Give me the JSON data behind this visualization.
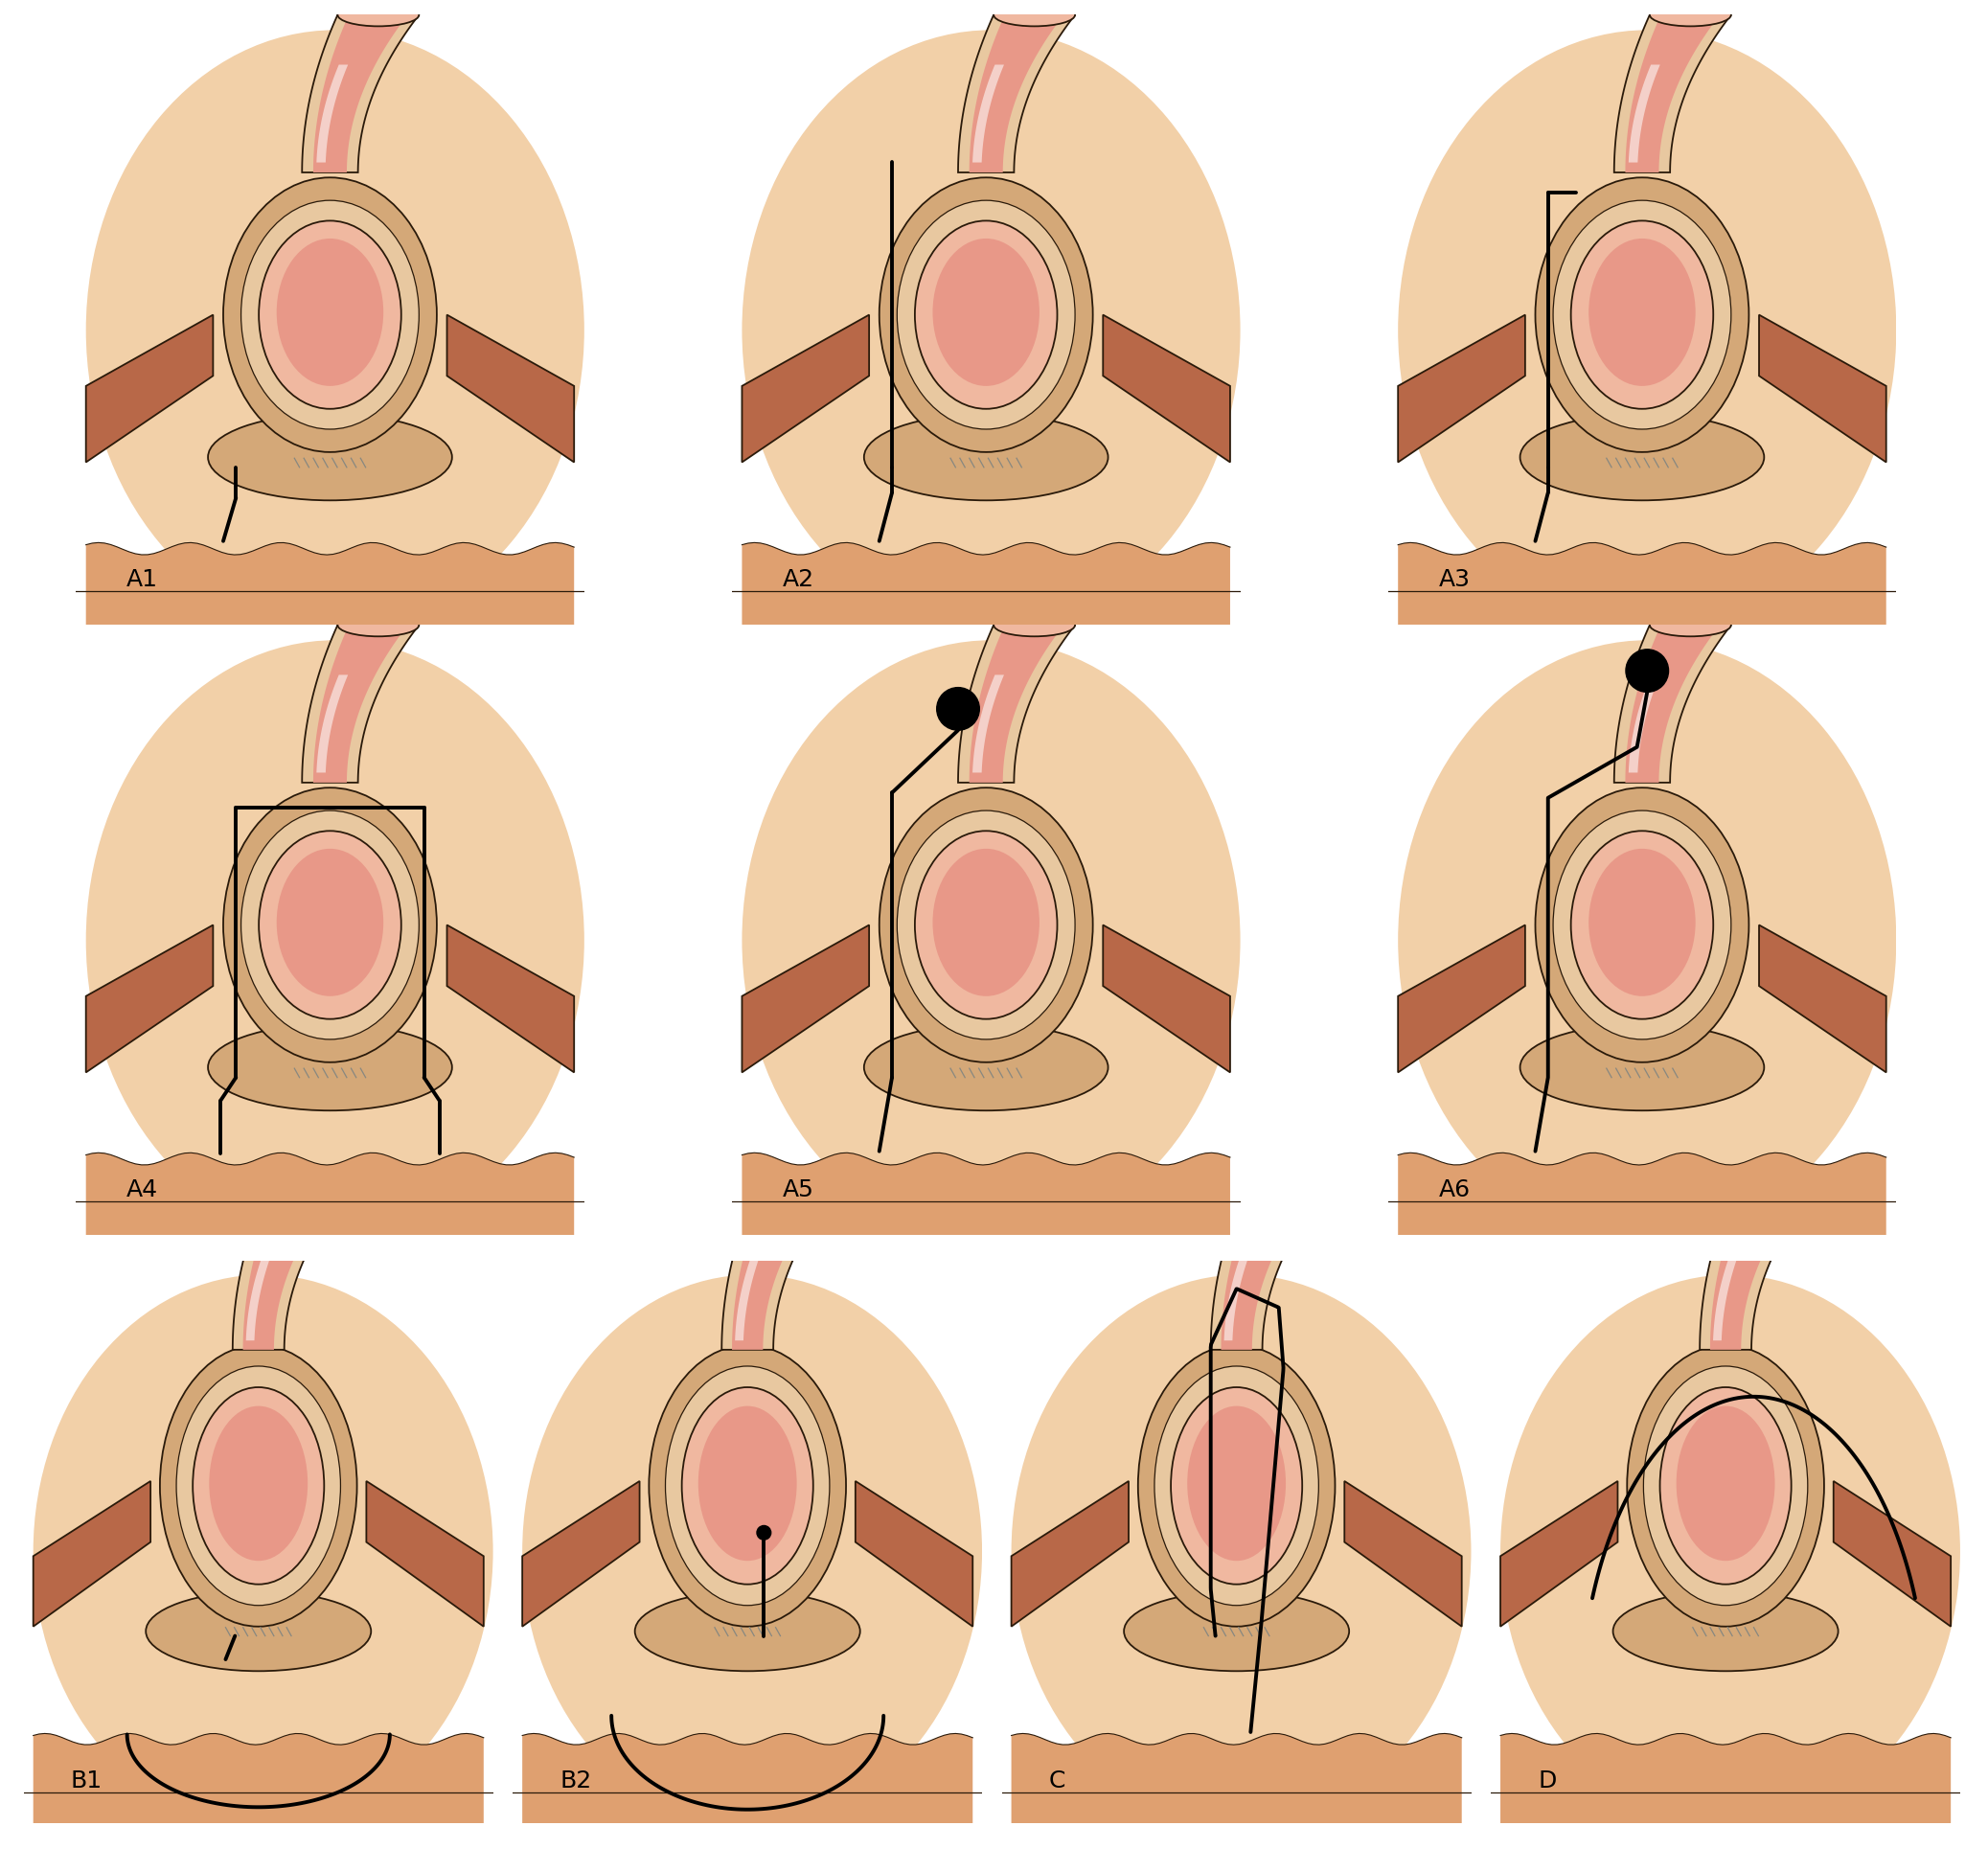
{
  "bg_color": "#ffffff",
  "skin_peach": "#f2d0a8",
  "skin_mid": "#dfa070",
  "skin_dark": "#c07858",
  "muscle_brown": "#b86848",
  "inner_pink": "#e89888",
  "inner_light": "#f0b8a0",
  "wall_tan": "#d4a878",
  "wall_light": "#e8c8a0",
  "line_color": "#2a1a0a",
  "fistula_color": "#000000",
  "label_size": 18,
  "panels": [
    "A1",
    "A2",
    "A3",
    "A4",
    "A5",
    "A6",
    "B1",
    "B2",
    "C",
    "D"
  ]
}
